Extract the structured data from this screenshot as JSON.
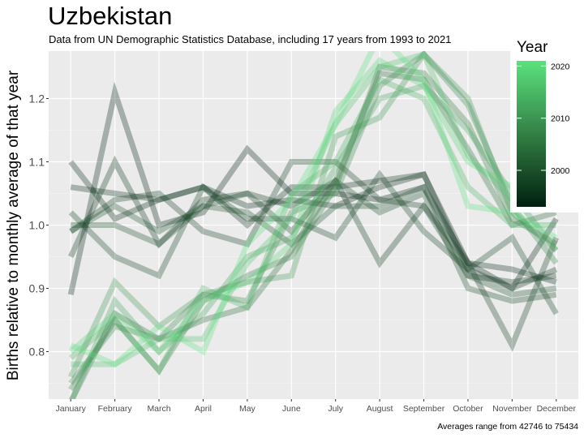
{
  "chart_data": {
    "type": "line",
    "title": "Uzbekistan",
    "subtitle": "Data from UN Demographic Statistics Database, including 17 years from 1993 to 2021",
    "ylabel": "Births relative to monthly average of that year",
    "xlabel": "",
    "caption": "Averages range from 42746 to 75434",
    "categories": [
      "January",
      "February",
      "March",
      "April",
      "May",
      "June",
      "July",
      "August",
      "September",
      "October",
      "November",
      "December"
    ],
    "ylim": [
      0.725,
      1.275
    ],
    "yticks": [
      0.8,
      0.9,
      1.0,
      1.1,
      1.2
    ],
    "ytick_labels": [
      "0.8",
      "0.9",
      "1.0",
      "1.1",
      "1.2"
    ],
    "grid": true,
    "legend": {
      "title": "Year",
      "position": "right-top",
      "range": [
        1993,
        2021
      ],
      "ticks": [
        2000,
        2010,
        2020
      ],
      "tick_labels": [
        "2000",
        "2010",
        "2020"
      ],
      "color_low": "#00200f",
      "color_mid": "#338044",
      "color_high": "#5be27d"
    },
    "series": [
      {
        "year": 1993,
        "values": [
          0.89,
          1.21,
          1.0,
          1.02,
          1.12,
          1.05,
          1.05,
          1.04,
          1.06,
          0.94,
          0.9,
          1.01
        ]
      },
      {
        "year": 1994,
        "values": [
          1.1,
          1.01,
          1.04,
          1.06,
          1.03,
          1.04,
          1.03,
          1.06,
          1.08,
          0.94,
          0.93,
          0.91
        ]
      },
      {
        "year": 1995,
        "values": [
          1.06,
          1.05,
          1.04,
          1.06,
          1.0,
          1.06,
          1.06,
          1.07,
          1.08,
          0.93,
          0.9,
          0.93
        ]
      },
      {
        "year": 1996,
        "values": [
          0.95,
          1.1,
          0.97,
          1.04,
          1.05,
          1.03,
          1.07,
          0.94,
          1.03,
          0.92,
          0.91,
          0.92
        ]
      },
      {
        "year": 1997,
        "values": [
          0.99,
          1.04,
          1.05,
          0.99,
          0.97,
          1.1,
          1.1,
          1.04,
          1.03,
          0.94,
          0.81,
          0.98
        ]
      },
      {
        "year": 1998,
        "values": [
          1.02,
          0.95,
          0.92,
          1.06,
          1.01,
          1.01,
          0.98,
          1.08,
          0.99,
          0.93,
          0.98,
          0.86
        ]
      },
      {
        "year": 1999,
        "values": [
          1.0,
          1.0,
          0.97,
          1.03,
          1.05,
          0.99,
          1.07,
          1.02,
          1.05,
          0.9,
          0.88,
          0.89
        ]
      },
      {
        "year": 2000,
        "values": [
          0.99,
          1.03,
          0.99,
          1.03,
          1.02,
          0.97,
          1.03,
          1.03,
          1.06,
          0.92,
          0.89,
          0.9
        ]
      },
      {
        "year": 2004,
        "values": [
          0.72,
          0.86,
          0.82,
          0.85,
          0.87,
          0.96,
          1.07,
          1.24,
          1.23,
          1.12,
          1.0,
          1.02
        ]
      },
      {
        "year": 2006,
        "values": [
          0.74,
          0.85,
          0.77,
          0.88,
          0.92,
          0.95,
          1.06,
          1.25,
          1.24,
          1.16,
          1.01,
          0.97
        ]
      },
      {
        "year": 2008,
        "values": [
          0.75,
          0.84,
          0.82,
          0.89,
          0.88,
          1.02,
          1.05,
          1.22,
          1.27,
          1.19,
          1.03,
          0.94
        ]
      },
      {
        "year": 2010,
        "values": [
          0.76,
          0.91,
          0.84,
          0.89,
          0.91,
          0.92,
          1.14,
          1.17,
          1.27,
          1.2,
          1.02,
          0.96
        ]
      },
      {
        "year": 2012,
        "values": [
          0.72,
          0.88,
          0.8,
          0.86,
          0.95,
          0.98,
          1.09,
          1.2,
          1.22,
          1.15,
          1.05,
          0.96
        ]
      },
      {
        "year": 2014,
        "values": [
          0.79,
          0.85,
          0.77,
          0.9,
          0.87,
          1.05,
          1.1,
          1.23,
          1.2,
          1.06,
          1.0,
          1.0
        ]
      },
      {
        "year": 2016,
        "values": [
          0.78,
          0.78,
          0.82,
          0.82,
          0.94,
          1.01,
          1.16,
          1.25,
          1.27,
          1.11,
          1.04,
          1.03
        ]
      },
      {
        "year": 2019,
        "values": [
          0.8,
          0.86,
          0.8,
          0.88,
          0.91,
          0.97,
          1.18,
          1.26,
          1.22,
          1.1,
          1.06,
          1.04
        ]
      },
      {
        "year": 2021,
        "values": [
          0.81,
          0.78,
          0.84,
          0.8,
          0.97,
          1.04,
          1.16,
          1.3,
          1.23,
          1.03,
          1.02,
          0.98
        ]
      }
    ]
  }
}
